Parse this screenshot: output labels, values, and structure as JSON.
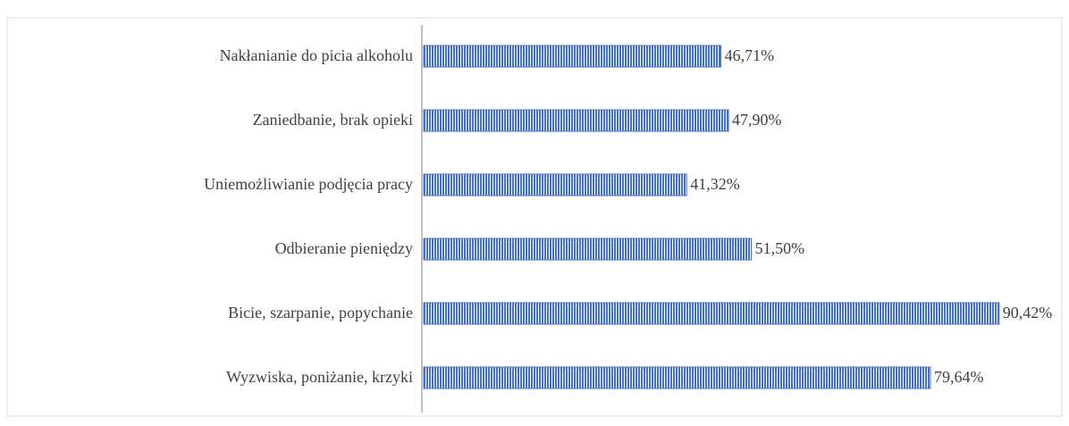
{
  "chart_data": {
    "type": "barh",
    "categories": [
      "Nakłanianie do picia alkoholu",
      "Zaniedbanie, brak opieki",
      "Uniemożliwianie podjęcia pracy",
      "Odbieranie pieniędzy",
      "Bicie, szarpanie, popychanie",
      "Wyzwiska, poniżanie, krzyki"
    ],
    "values": [
      46.71,
      47.9,
      41.32,
      51.5,
      90.42,
      79.64
    ],
    "value_labels": [
      "46,71%",
      "47,90%",
      "41,32%",
      "51,50%",
      "90,42%",
      "79,64%"
    ],
    "color": "#4472c4",
    "xlim": [
      0,
      100
    ]
  }
}
